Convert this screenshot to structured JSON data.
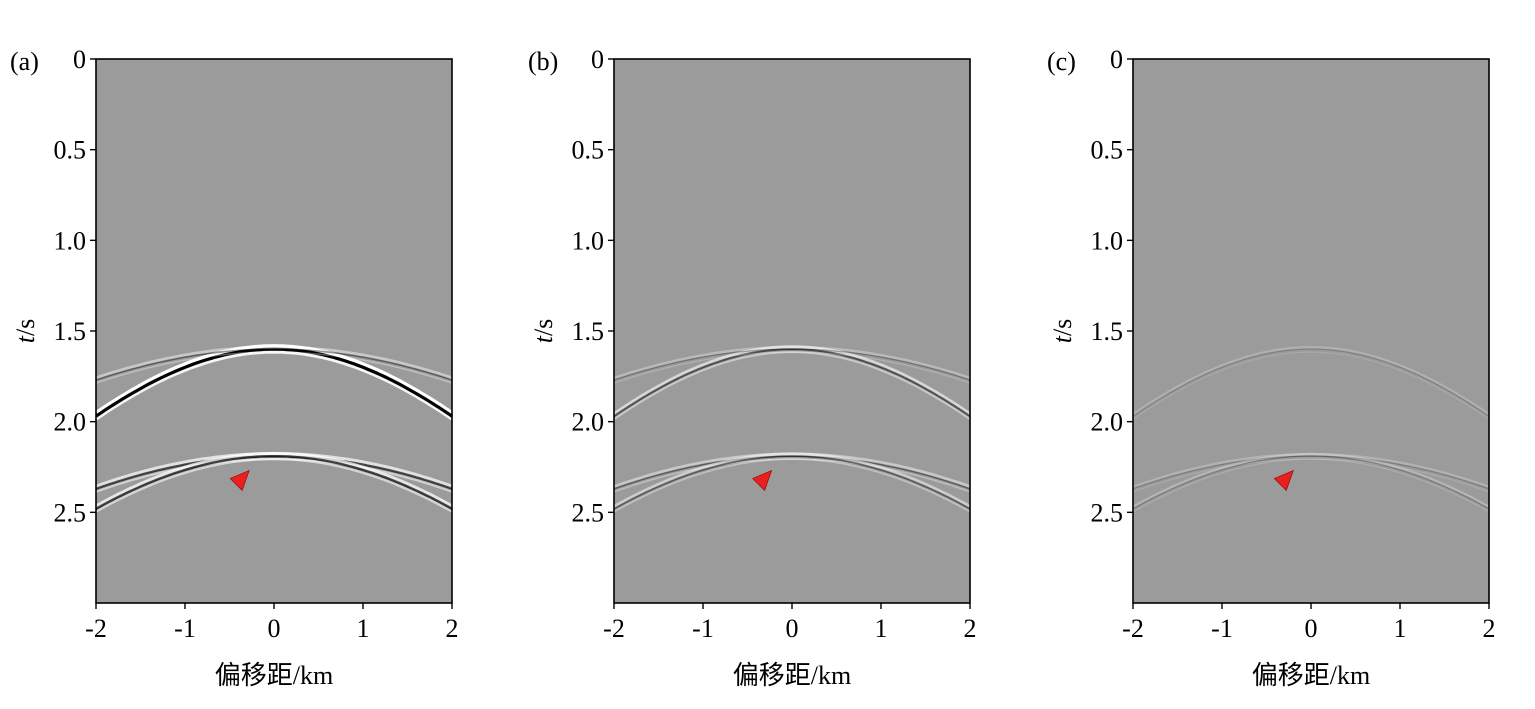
{
  "figure": {
    "colors": {
      "background": "#9b9b9b",
      "event_dark": "#000000",
      "event_light": "#ffffff",
      "marker": "#e82020"
    },
    "panels": [
      {
        "label": "(a)",
        "xlabel": "偏移距/km",
        "ylabel_italic": "t",
        "ylabel_rest": "/s",
        "x_ticks": [
          "-2",
          "-1",
          "0",
          "1",
          "2"
        ],
        "y_ticks": [
          "0",
          "0.5",
          "1.0",
          "1.5",
          "2.0",
          "2.5"
        ]
      },
      {
        "label": "(b)",
        "xlabel": "偏移距/km",
        "ylabel_italic": "t",
        "ylabel_rest": "/s",
        "x_ticks": [
          "-2",
          "-1",
          "0",
          "1",
          "2"
        ],
        "y_ticks": [
          "0",
          "0.5",
          "1.0",
          "1.5",
          "2.0",
          "2.5"
        ]
      },
      {
        "label": "(c)",
        "xlabel": "偏移距/km",
        "ylabel_italic": "t",
        "ylabel_rest": "/s",
        "x_ticks": [
          "-2",
          "-1",
          "0",
          "1",
          "2"
        ],
        "y_ticks": [
          "0",
          "0.5",
          "1.0",
          "1.5",
          "2.0",
          "2.5"
        ]
      }
    ]
  },
  "chart_data": [
    {
      "type": "heatmap",
      "panel": "(a)",
      "x_unit": "km",
      "y_unit": "s",
      "xlim": [
        -2,
        2
      ],
      "ylim": [
        0,
        3
      ],
      "y_inverted": true,
      "colormap": "gray",
      "events": [
        {
          "t0": 1.6,
          "t_at_2km": 1.97,
          "amplitude": 1.0
        },
        {
          "t0": 1.6,
          "t_at_2km": 1.77,
          "amplitude": 0.3
        },
        {
          "t0": 2.19,
          "t_at_2km": 2.37,
          "amplitude": 0.55
        },
        {
          "t0": 2.19,
          "t_at_2km": 2.48,
          "amplitude": 0.6
        }
      ],
      "marker": {
        "x": -0.38,
        "t": 2.33
      }
    },
    {
      "type": "heatmap",
      "panel": "(b)",
      "x_unit": "km",
      "y_unit": "s",
      "xlim": [
        -2,
        2
      ],
      "ylim": [
        0,
        3
      ],
      "y_inverted": true,
      "colormap": "gray",
      "events": [
        {
          "t0": 1.6,
          "t_at_2km": 1.97,
          "amplitude": 0.45
        },
        {
          "t0": 1.6,
          "t_at_2km": 1.77,
          "amplitude": 0.15
        },
        {
          "t0": 2.19,
          "t_at_2km": 2.37,
          "amplitude": 0.3
        },
        {
          "t0": 2.19,
          "t_at_2km": 2.48,
          "amplitude": 0.35
        }
      ],
      "marker": {
        "x": -0.33,
        "t": 2.33
      }
    },
    {
      "type": "heatmap",
      "panel": "(c)",
      "x_unit": "km",
      "y_unit": "s",
      "xlim": [
        -2,
        2
      ],
      "ylim": [
        0,
        3
      ],
      "y_inverted": true,
      "colormap": "gray",
      "events": [
        {
          "t0": 1.6,
          "t_at_2km": 1.97,
          "amplitude": 0.06
        },
        {
          "t0": 2.19,
          "t_at_2km": 2.37,
          "amplitude": 0.08
        },
        {
          "t0": 2.19,
          "t_at_2km": 2.48,
          "amplitude": 0.1
        }
      ],
      "marker": {
        "x": -0.3,
        "t": 2.33
      }
    }
  ]
}
